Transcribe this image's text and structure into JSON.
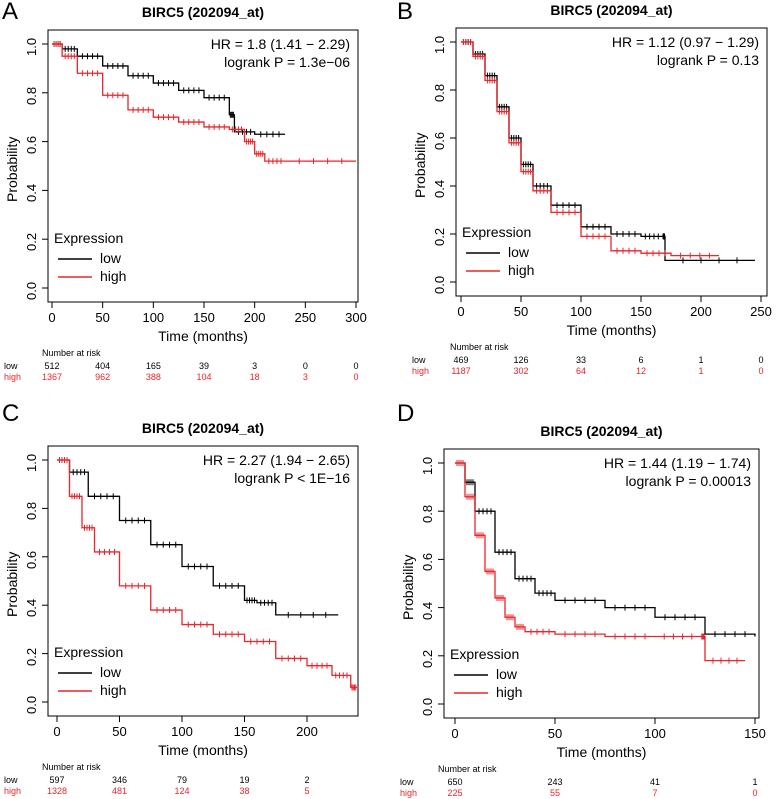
{
  "colors": {
    "low": "#000000",
    "high": "#e8262b",
    "axis": "#000000"
  },
  "chart_data": [
    {
      "letter": "A",
      "type": "line",
      "title": "BIRC5 (202094_at)",
      "hr_text": "HR = 1.8 (1.41 − 2.29)",
      "logrank_text": "logrank P = 1.3e−06",
      "xlabel": "Time (months)",
      "ylabel": "Probability",
      "xlim": [
        0,
        300
      ],
      "ylim": [
        0,
        1
      ],
      "xticks": [
        0,
        50,
        100,
        150,
        200,
        250,
        300
      ],
      "xtick_labels": [
        "0",
        "50",
        "100",
        "150",
        "200",
        "250",
        "300"
      ],
      "yticks": [
        0,
        0.2,
        0.4,
        0.6,
        0.8,
        1
      ],
      "ytick_labels": [
        "0.0",
        "0.2",
        "0.4",
        "0.6",
        "0.8",
        "1.0"
      ],
      "legend_title": "Expression",
      "legend_labels": [
        "low",
        "high"
      ],
      "risk_title": "Number at risk",
      "risk_times": [
        0,
        50,
        100,
        150,
        200,
        250,
        300
      ],
      "risk_labels": [
        "low",
        "high"
      ],
      "risk_low": [
        "512",
        "404",
        "165",
        "39",
        "3",
        "0",
        "0"
      ],
      "risk_high": [
        "1367",
        "962",
        "388",
        "104",
        "18",
        "3",
        "0"
      ],
      "series": [
        {
          "name": "low",
          "x": [
            0,
            10,
            25,
            50,
            75,
            100,
            125,
            150,
            175,
            180,
            200,
            230
          ],
          "y": [
            1.0,
            0.98,
            0.95,
            0.91,
            0.87,
            0.84,
            0.81,
            0.78,
            0.71,
            0.64,
            0.63,
            0.63
          ]
        },
        {
          "name": "high",
          "x": [
            0,
            10,
            25,
            50,
            75,
            100,
            125,
            150,
            175,
            190,
            200,
            210,
            230,
            300
          ],
          "y": [
            1.0,
            0.95,
            0.88,
            0.79,
            0.73,
            0.7,
            0.68,
            0.66,
            0.65,
            0.6,
            0.55,
            0.52,
            0.52,
            0.52
          ]
        }
      ]
    },
    {
      "letter": "B",
      "type": "line",
      "title": "BIRC5 (202094_at)",
      "hr_text": "HR = 1.12 (0.97 − 1.29)",
      "logrank_text": "logrank P = 0.13",
      "xlabel": "Time (months)",
      "ylabel": "Probability",
      "xlim": [
        0,
        250
      ],
      "ylim": [
        0,
        1
      ],
      "xticks": [
        0,
        50,
        100,
        150,
        200,
        250
      ],
      "xtick_labels": [
        "0",
        "50",
        "100",
        "150",
        "200",
        "250"
      ],
      "yticks": [
        0,
        0.2,
        0.4,
        0.6,
        0.8,
        1
      ],
      "ytick_labels": [
        "0.0",
        "0.2",
        "0.4",
        "0.6",
        "0.8",
        "1.0"
      ],
      "legend_title": "Expression",
      "legend_labels": [
        "low",
        "high"
      ],
      "risk_title": "Number at risk",
      "risk_times": [
        0,
        50,
        100,
        150,
        200,
        250
      ],
      "risk_labels": [
        "low",
        "high"
      ],
      "risk_low": [
        "469",
        "126",
        "33",
        "6",
        "1",
        "0"
      ],
      "risk_high": [
        "1187",
        "302",
        "64",
        "12",
        "1",
        "0"
      ],
      "series": [
        {
          "name": "low",
          "x": [
            0,
            10,
            20,
            30,
            40,
            50,
            60,
            75,
            100,
            125,
            150,
            168,
            170,
            245
          ],
          "y": [
            1.0,
            0.95,
            0.86,
            0.73,
            0.6,
            0.49,
            0.4,
            0.32,
            0.23,
            0.2,
            0.19,
            0.19,
            0.09,
            0.09
          ]
        },
        {
          "name": "high",
          "x": [
            0,
            10,
            20,
            30,
            40,
            50,
            60,
            75,
            100,
            125,
            150,
            175,
            215
          ],
          "y": [
            1.0,
            0.94,
            0.84,
            0.71,
            0.58,
            0.46,
            0.38,
            0.29,
            0.19,
            0.13,
            0.12,
            0.11,
            0.11
          ]
        }
      ]
    },
    {
      "letter": "C",
      "type": "line",
      "title": "BIRC5 (202094_at)",
      "hr_text": "HR = 2.27 (1.94 − 2.65)",
      "logrank_text": "logrank P < 1E−16",
      "xlabel": "Time (months)",
      "ylabel": "Probability",
      "xlim": [
        0,
        240
      ],
      "ylim": [
        0,
        1
      ],
      "xticks": [
        0,
        50,
        100,
        150,
        200
      ],
      "xtick_labels": [
        "0",
        "50",
        "100",
        "150",
        "200"
      ],
      "yticks": [
        0,
        0.2,
        0.4,
        0.6,
        0.8,
        1
      ],
      "ytick_labels": [
        "0.0",
        "0.2",
        "0.4",
        "0.6",
        "0.8",
        "1.0"
      ],
      "legend_title": "Expression",
      "legend_labels": [
        "low",
        "high"
      ],
      "risk_title": "Number at risk",
      "risk_times": [
        0,
        50,
        100,
        150,
        200
      ],
      "risk_labels": [
        "low",
        "high"
      ],
      "risk_low": [
        "597",
        "346",
        "79",
        "19",
        "2"
      ],
      "risk_high": [
        "1328",
        "481",
        "124",
        "38",
        "5"
      ],
      "series": [
        {
          "name": "low",
          "x": [
            0,
            10,
            25,
            50,
            75,
            100,
            125,
            150,
            160,
            175,
            225
          ],
          "y": [
            1.0,
            0.95,
            0.85,
            0.75,
            0.65,
            0.56,
            0.48,
            0.42,
            0.41,
            0.36,
            0.36
          ]
        },
        {
          "name": "high",
          "x": [
            0,
            10,
            20,
            30,
            50,
            75,
            100,
            125,
            150,
            175,
            200,
            220,
            235,
            240
          ],
          "y": [
            1.0,
            0.85,
            0.72,
            0.62,
            0.48,
            0.38,
            0.32,
            0.28,
            0.25,
            0.18,
            0.15,
            0.11,
            0.06,
            0.06
          ]
        }
      ]
    },
    {
      "letter": "D",
      "type": "line",
      "title": "BIRC5 (202094_at)",
      "hr_text": "HR = 1.44 (1.19 − 1.74)",
      "logrank_text": "logrank P = 0.00013",
      "xlabel": "Time (months)",
      "ylabel": "Probability",
      "xlim": [
        0,
        150
      ],
      "ylim": [
        0,
        1
      ],
      "xticks": [
        0,
        50,
        100,
        150
      ],
      "xtick_labels": [
        "0",
        "50",
        "100",
        "150"
      ],
      "yticks": [
        0,
        0.2,
        0.4,
        0.6,
        0.8,
        1
      ],
      "ytick_labels": [
        "0.0",
        "0.2",
        "0.4",
        "0.6",
        "0.8",
        "1.0"
      ],
      "legend_title": "Expression",
      "legend_labels": [
        "low",
        "high"
      ],
      "risk_title": "Number at risk",
      "risk_times": [
        0,
        50,
        100,
        150
      ],
      "risk_labels": [
        "low",
        "high"
      ],
      "risk_low": [
        "650",
        "243",
        "41",
        "1"
      ],
      "risk_high": [
        "225",
        "55",
        "7",
        "0"
      ],
      "series": [
        {
          "name": "low",
          "x": [
            0,
            5,
            10,
            20,
            30,
            40,
            50,
            75,
            100,
            125,
            150
          ],
          "y": [
            1.0,
            0.92,
            0.8,
            0.63,
            0.52,
            0.46,
            0.43,
            0.4,
            0.36,
            0.29,
            0.28
          ]
        },
        {
          "name": "high",
          "x": [
            0,
            5,
            10,
            15,
            20,
            25,
            30,
            35,
            50,
            75,
            100,
            123,
            125,
            145
          ],
          "y": [
            1.0,
            0.86,
            0.7,
            0.55,
            0.44,
            0.36,
            0.32,
            0.3,
            0.29,
            0.28,
            0.28,
            0.28,
            0.18,
            0.18
          ]
        }
      ]
    }
  ]
}
